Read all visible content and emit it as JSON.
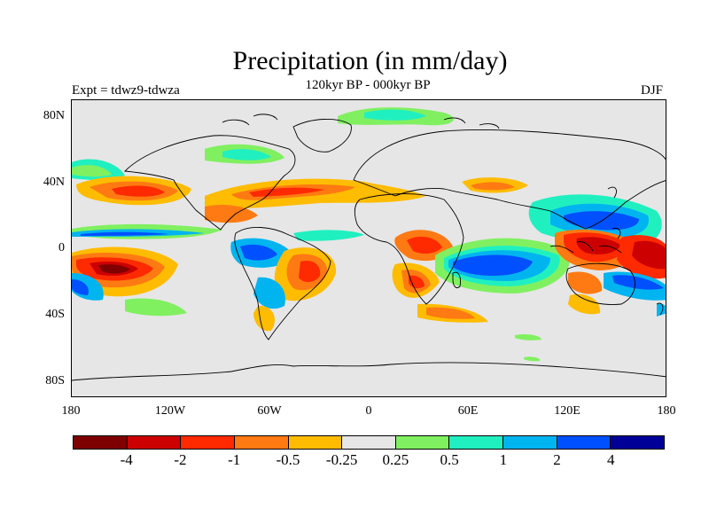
{
  "title": "Precipitation (in mm/day)",
  "subtitle": "120kyr BP - 000kyr BP",
  "left_label": "Expt = tdwz9-tdwza",
  "right_label": "DJF",
  "y_ticks": [
    "80N",
    "40N",
    "0",
    "40S",
    "80S"
  ],
  "x_ticks": [
    "180",
    "120W",
    "60W",
    "0",
    "60E",
    "120E",
    "180"
  ],
  "colorbar": {
    "colors": [
      "#7f0000",
      "#cc0000",
      "#ff2a00",
      "#ff7a12",
      "#ffbc00",
      "#e6e6e6",
      "#80f060",
      "#20f0c0",
      "#00b4f0",
      "#0050ff",
      "#000098"
    ],
    "labels": [
      "-4",
      "-2",
      "-1",
      "-0.5",
      "-0.25",
      "0.25",
      "0.5",
      "1",
      "2",
      "4"
    ]
  },
  "colors": {
    "background_field": "#e6e6e6",
    "coastline": "#000000"
  }
}
